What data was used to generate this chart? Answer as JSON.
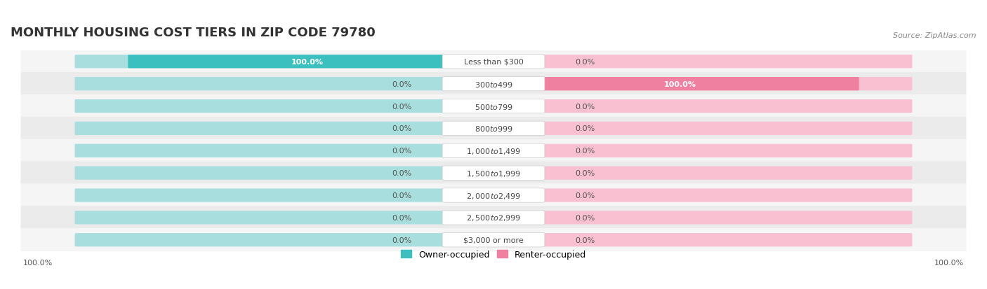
{
  "title": "MONTHLY HOUSING COST TIERS IN ZIP CODE 79780",
  "source": "Source: ZipAtlas.com",
  "categories": [
    "Less than $300",
    "$300 to $499",
    "$500 to $799",
    "$800 to $999",
    "$1,000 to $1,499",
    "$1,500 to $1,999",
    "$2,000 to $2,499",
    "$2,500 to $2,999",
    "$3,000 or more"
  ],
  "owner_values": [
    100.0,
    0.0,
    0.0,
    0.0,
    0.0,
    0.0,
    0.0,
    0.0,
    0.0
  ],
  "renter_values": [
    0.0,
    100.0,
    0.0,
    0.0,
    0.0,
    0.0,
    0.0,
    0.0,
    0.0
  ],
  "owner_color": "#3bbfbf",
  "renter_color": "#f080a0",
  "owner_color_light": "#a8dede",
  "renter_color_light": "#f8c0d0",
  "bar_bg_color": "#f0f0f0",
  "row_bg_color_odd": "#f5f5f5",
  "row_bg_color_even": "#ebebeb",
  "label_bg_color": "#ffffff",
  "title_fontsize": 13,
  "source_fontsize": 8,
  "label_fontsize": 8,
  "value_fontsize": 8,
  "legend_fontsize": 9,
  "figsize": [
    14.06,
    4.14
  ],
  "dpi": 100
}
